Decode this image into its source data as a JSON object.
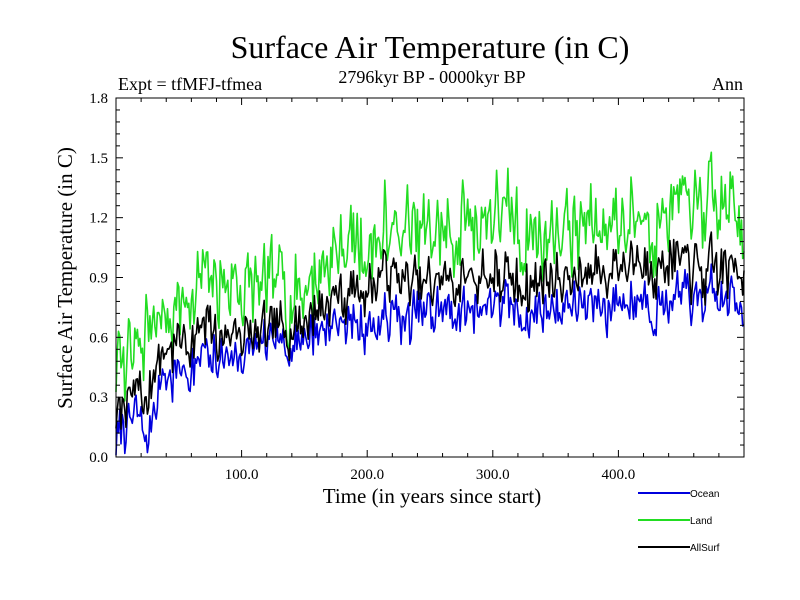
{
  "chart_data": {
    "type": "line",
    "title": "Surface Air Temperature (in C)",
    "subtitle": "2796kyr BP - 0000kyr BP",
    "experiment_label": "Expt = tfMFJ-tfmea",
    "season_label": "Ann",
    "xlabel": "Time (in years since start)",
    "ylabel": "Surface Air Temperature (in C)",
    "xlim": [
      0,
      500
    ],
    "ylim": [
      0.0,
      1.8
    ],
    "xticks": [
      100,
      200,
      300,
      400
    ],
    "xtick_labels": [
      "100.0",
      "200.0",
      "300.0",
      "400.0"
    ],
    "yticks": [
      0.0,
      0.3,
      0.6,
      0.9,
      1.2,
      1.5,
      1.8
    ],
    "ytick_labels": [
      "0.0",
      "0.3",
      "0.6",
      "0.9",
      "1.2",
      "1.5",
      "1.8"
    ],
    "legend_position": "bottom-right, below plot",
    "series": [
      {
        "name": "Ocean",
        "color": "#0000dd",
        "x": [
          0,
          10,
          20,
          25,
          30,
          40,
          50,
          60,
          70,
          80,
          90,
          100,
          110,
          120,
          130,
          140,
          150,
          160,
          170,
          180,
          190,
          200,
          210,
          220,
          230,
          240,
          250,
          260,
          270,
          280,
          290,
          300,
          310,
          320,
          330,
          340,
          350,
          360,
          370,
          380,
          390,
          400,
          410,
          420,
          430,
          440,
          450,
          460,
          470,
          480,
          490,
          500
        ],
        "values": [
          0.08,
          0.18,
          0.2,
          0.05,
          0.3,
          0.38,
          0.42,
          0.45,
          0.48,
          0.5,
          0.5,
          0.52,
          0.53,
          0.55,
          0.56,
          0.57,
          0.6,
          0.63,
          0.65,
          0.67,
          0.66,
          0.66,
          0.68,
          0.7,
          0.68,
          0.7,
          0.72,
          0.73,
          0.72,
          0.74,
          0.76,
          0.78,
          0.74,
          0.72,
          0.72,
          0.74,
          0.76,
          0.76,
          0.75,
          0.76,
          0.76,
          0.78,
          0.78,
          0.79,
          0.78,
          0.8,
          0.79,
          0.78,
          0.79,
          0.78,
          0.79,
          0.8
        ],
        "noise_amplitude": 0.2
      },
      {
        "name": "Land",
        "color": "#22dd22",
        "x": [
          0,
          10,
          20,
          30,
          40,
          50,
          60,
          70,
          80,
          90,
          100,
          110,
          120,
          130,
          140,
          150,
          160,
          170,
          180,
          190,
          200,
          210,
          220,
          230,
          240,
          250,
          260,
          270,
          280,
          290,
          300,
          310,
          320,
          330,
          340,
          350,
          360,
          370,
          380,
          390,
          400,
          410,
          420,
          430,
          440,
          450,
          460,
          470,
          480,
          490,
          500
        ],
        "values": [
          0.45,
          0.5,
          0.55,
          0.75,
          0.72,
          0.78,
          0.82,
          0.85,
          0.85,
          0.86,
          0.86,
          0.85,
          0.84,
          0.85,
          0.84,
          0.86,
          0.9,
          1.02,
          1.05,
          1.05,
          1.07,
          1.1,
          1.15,
          1.12,
          1.12,
          1.13,
          1.1,
          1.14,
          1.16,
          1.2,
          1.24,
          1.22,
          1.12,
          1.1,
          1.1,
          1.14,
          1.17,
          1.15,
          1.15,
          1.18,
          1.18,
          1.22,
          1.25,
          1.2,
          1.25,
          1.26,
          1.24,
          1.22,
          1.24,
          1.25,
          1.25
        ],
        "noise_amplitude": 0.34
      },
      {
        "name": "AllSurf",
        "color": "#000000",
        "x": [
          0,
          10,
          20,
          25,
          30,
          40,
          50,
          60,
          70,
          80,
          90,
          100,
          110,
          120,
          130,
          140,
          150,
          160,
          170,
          180,
          190,
          200,
          210,
          220,
          230,
          240,
          250,
          260,
          270,
          280,
          290,
          300,
          310,
          320,
          330,
          340,
          350,
          360,
          370,
          380,
          390,
          400,
          410,
          420,
          430,
          440,
          450,
          460,
          470,
          480,
          490,
          500
        ],
        "values": [
          0.22,
          0.28,
          0.32,
          0.2,
          0.5,
          0.55,
          0.58,
          0.6,
          0.62,
          0.6,
          0.62,
          0.62,
          0.6,
          0.62,
          0.64,
          0.68,
          0.7,
          0.74,
          0.8,
          0.82,
          0.82,
          0.84,
          0.9,
          0.92,
          0.86,
          0.86,
          0.88,
          0.88,
          0.86,
          0.9,
          0.92,
          0.94,
          0.88,
          0.86,
          0.86,
          0.88,
          0.92,
          0.9,
          0.9,
          0.92,
          0.93,
          0.96,
          0.98,
          0.96,
          0.98,
          1.0,
          0.96,
          0.93,
          0.92,
          0.93,
          0.95,
          0.96
        ],
        "noise_amplitude": 0.22
      }
    ]
  }
}
